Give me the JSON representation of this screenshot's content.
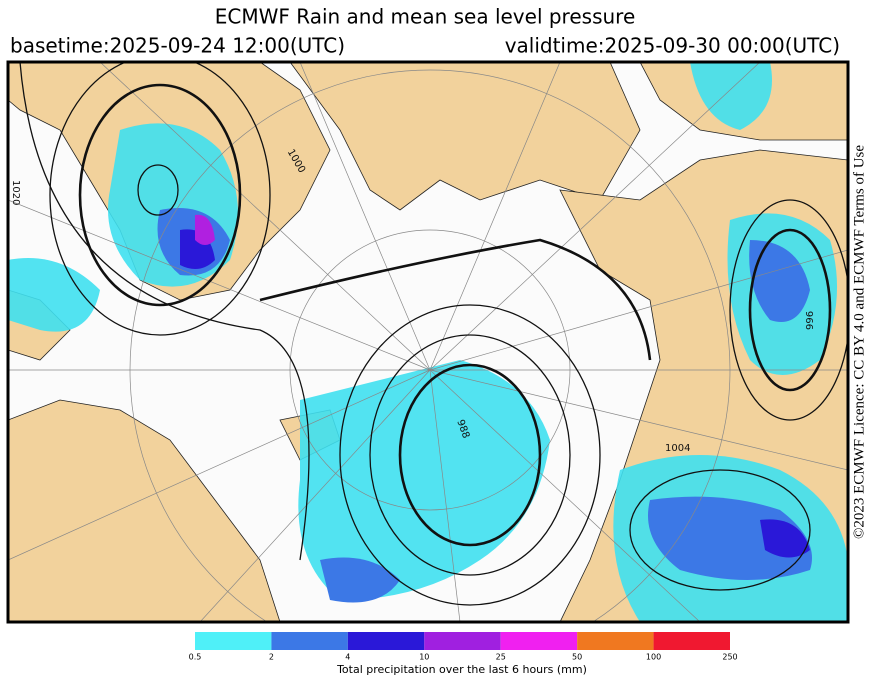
{
  "header": {
    "title": "ECMWF Rain and mean sea level pressure",
    "basetime": "basetime:2025-09-24 12:00(UTC)",
    "validtime": "validtime:2025-09-30 00:00(UTC)"
  },
  "map": {
    "isobar_labels": [
      "1020",
      "1000",
      "988",
      "1004",
      "996"
    ]
  },
  "side_note": "©2023 ECMWF Licence: CC BY 4.0 and ECMWF Terms of Use",
  "colorbar": {
    "title": "Total precipitation over the last 6 hours (mm)",
    "bounds": [
      0.5,
      2,
      4,
      10,
      25,
      50,
      100,
      250
    ],
    "colors": [
      "#4ff0f8",
      "#3c78e6",
      "#2a18d8",
      "#a020e0",
      "#f020f0",
      "#f07820",
      "#f01830"
    ]
  }
}
